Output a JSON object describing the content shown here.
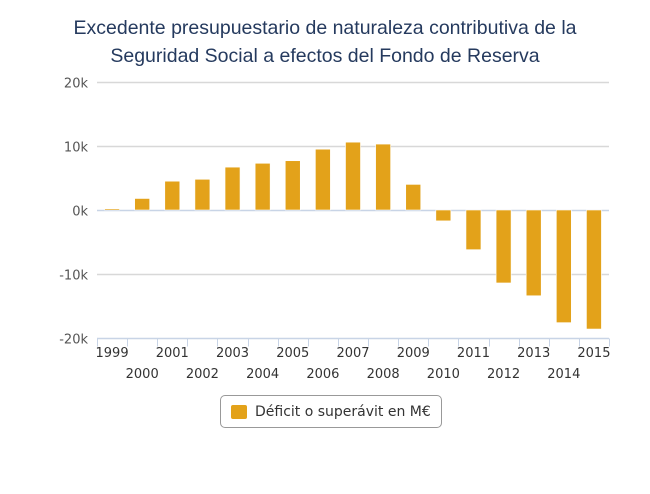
{
  "chart_data": {
    "type": "bar",
    "title_lines": [
      "Excedente presupuestario de naturaleza contributiva de la",
      "Seguridad Social a efectos del Fondo de Reserva"
    ],
    "xlabel": "",
    "ylabel": "",
    "categories": [
      "1999",
      "2000",
      "2001",
      "2002",
      "2003",
      "2004",
      "2005",
      "2006",
      "2007",
      "2008",
      "2009",
      "2010",
      "2011",
      "2012",
      "2013",
      "2014",
      "2015"
    ],
    "series": [
      {
        "name": "Déficit o superávit en M€",
        "color": "#e3a21a",
        "values": [
          200,
          1800,
          4500,
          4800,
          6700,
          7300,
          7700,
          9500,
          10600,
          10300,
          4000,
          -1700,
          -6200,
          -11400,
          -13400,
          -17600,
          -18600
        ]
      }
    ],
    "ylim": [
      -20000,
      20000
    ],
    "yticks": [
      20000,
      10000,
      0,
      -10000,
      -20000
    ],
    "ytick_labels": [
      "20k",
      "10k",
      "0k",
      "-10k",
      "-20k"
    ],
    "grid": true,
    "legend_position": "bottom-center",
    "colors": {
      "grid": "#d8d8d8",
      "zero_line": "#c8d4e6",
      "axis": "#c8d4e6",
      "title": "#253a5e"
    }
  }
}
